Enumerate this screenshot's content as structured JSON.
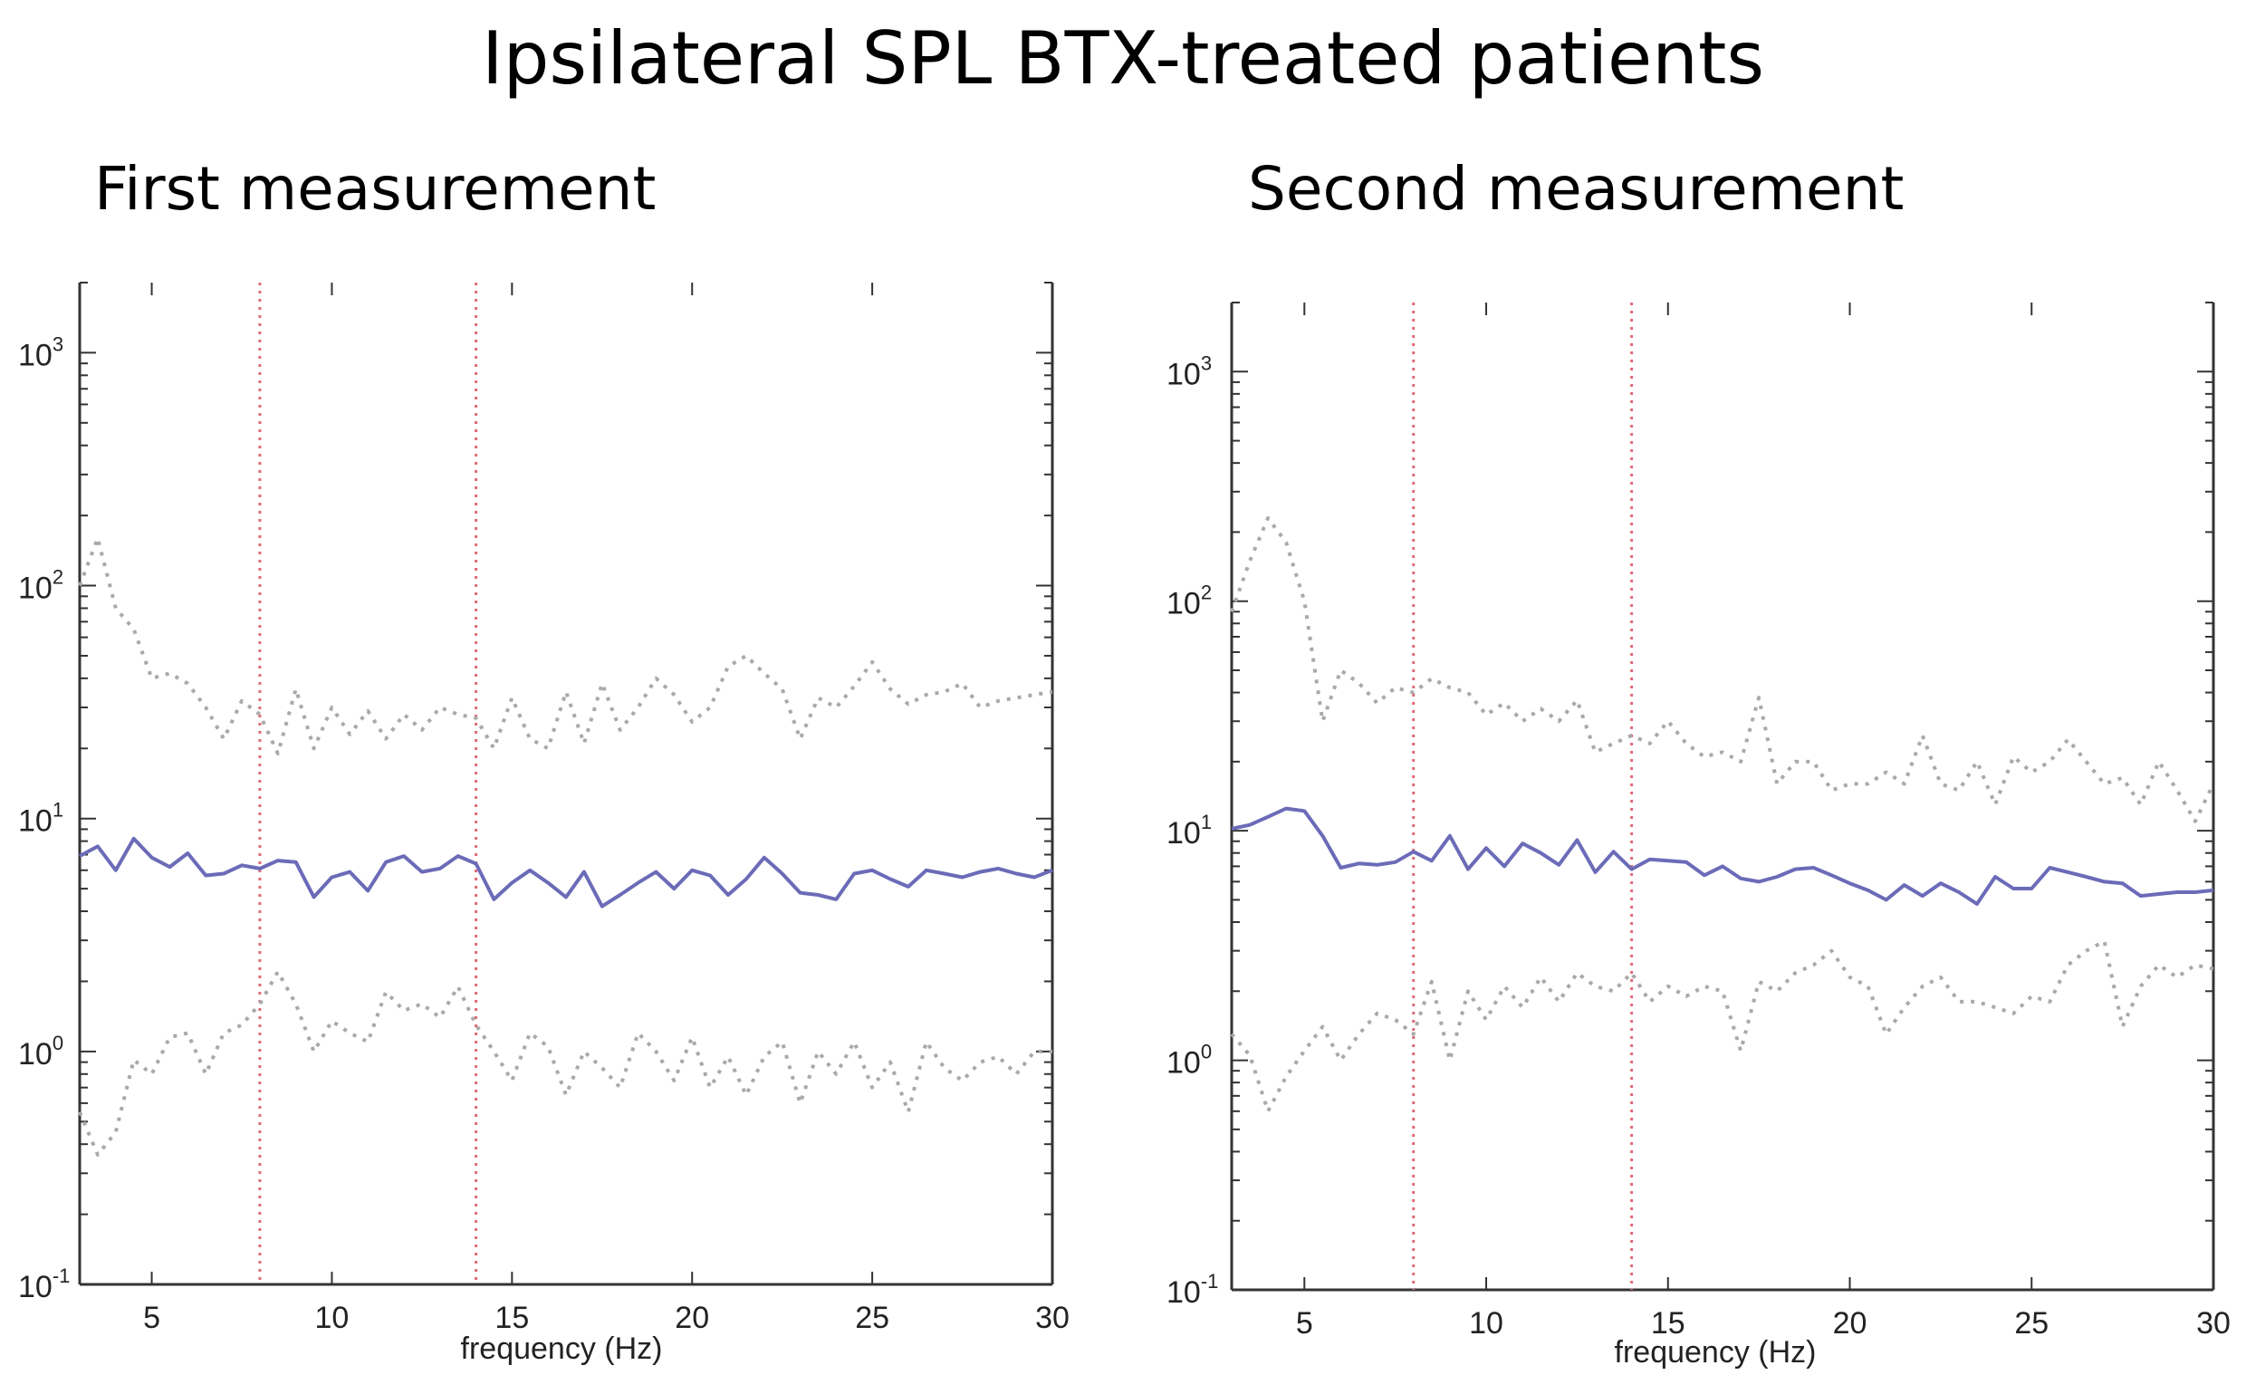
{
  "title": "Ipsilateral SPL BTX-treated patients",
  "colors": {
    "mean": "#6b6bb8",
    "bounds": "#a9a9ab",
    "markers": "#e06a78",
    "axis": "#333333"
  },
  "chart_data": [
    {
      "type": "line",
      "title": "First measurement",
      "xlabel": "frequency (Hz)",
      "ylabel": "",
      "yscale": "log",
      "xlim": [
        3,
        30
      ],
      "ylim": [
        0.1,
        2000
      ],
      "xticks": [
        5,
        10,
        15,
        20,
        25,
        30
      ],
      "yticks": [
        {
          "base": "10",
          "exp": "3",
          "value": 1000
        },
        {
          "base": "10",
          "exp": "2",
          "value": 100
        },
        {
          "base": "10",
          "exp": "1",
          "value": 10
        },
        {
          "base": "10",
          "exp": "0",
          "value": 1
        },
        {
          "base": "10",
          "exp": "-1",
          "value": 0.1
        }
      ],
      "vlines": [
        8,
        14
      ],
      "x": [
        3,
        3.5,
        4,
        4.5,
        5,
        5.5,
        6,
        6.5,
        7,
        7.5,
        8,
        8.5,
        9,
        9.5,
        10,
        10.5,
        11,
        11.5,
        12,
        12.5,
        13,
        13.5,
        14,
        14.5,
        15,
        15.5,
        16,
        16.5,
        17,
        17.5,
        18,
        18.5,
        19,
        19.5,
        20,
        20.5,
        21,
        21.5,
        22,
        22.5,
        23,
        23.5,
        24,
        24.5,
        25,
        25.5,
        26,
        26.5,
        27,
        27.5,
        28,
        28.5,
        29,
        29.5,
        30
      ],
      "series": [
        {
          "name": "mean",
          "style": "solid",
          "values": [
            6.9,
            7.6,
            6.0,
            8.2,
            6.8,
            6.2,
            7.1,
            5.7,
            5.8,
            6.3,
            6.1,
            6.6,
            6.5,
            4.6,
            5.6,
            5.9,
            4.9,
            6.5,
            6.9,
            5.9,
            6.1,
            6.9,
            6.4,
            4.5,
            5.3,
            6.0,
            5.3,
            4.6,
            5.9,
            4.2,
            4.7,
            5.3,
            5.9,
            5.0,
            6.0,
            5.7,
            4.7,
            5.5,
            6.8,
            5.8,
            4.8,
            4.7,
            4.5,
            5.8,
            6.0,
            5.5,
            5.1,
            6.0,
            5.8,
            5.6,
            5.9,
            6.1,
            5.8,
            5.6,
            6.0
          ]
        },
        {
          "name": "upper bound",
          "style": "dotted",
          "values": [
            100,
            160,
            80,
            65,
            40,
            42,
            38,
            30,
            22,
            32,
            28,
            19,
            36,
            20,
            30,
            23,
            29,
            22,
            28,
            24,
            30,
            28,
            27,
            20,
            33,
            22,
            20,
            35,
            21,
            38,
            24,
            30,
            40,
            34,
            26,
            30,
            45,
            50,
            42,
            36,
            22,
            33,
            30,
            37,
            47,
            36,
            31,
            34,
            35,
            38,
            30,
            32,
            33,
            34,
            35
          ]
        },
        {
          "name": "lower bound",
          "style": "dotted",
          "values": [
            0.55,
            0.36,
            0.45,
            0.92,
            0.8,
            1.15,
            1.2,
            0.8,
            1.2,
            1.3,
            1.6,
            2.2,
            1.6,
            1.0,
            1.35,
            1.2,
            1.1,
            1.8,
            1.5,
            1.6,
            1.4,
            1.9,
            1.3,
            1.0,
            0.75,
            1.2,
            1.05,
            0.65,
            1.0,
            0.85,
            0.7,
            1.2,
            1.0,
            0.75,
            1.15,
            0.7,
            0.95,
            0.65,
            0.95,
            1.1,
            0.6,
            1.0,
            0.8,
            1.1,
            0.7,
            0.9,
            0.55,
            1.1,
            0.85,
            0.75,
            0.9,
            0.95,
            0.8,
            1.0,
            1.0
          ]
        }
      ]
    },
    {
      "type": "line",
      "title": "Second measurement",
      "xlabel": "frequency (Hz)",
      "ylabel": "",
      "yscale": "log",
      "xlim": [
        3,
        30
      ],
      "ylim": [
        0.1,
        2000
      ],
      "xticks": [
        5,
        10,
        15,
        20,
        25,
        30
      ],
      "yticks": [
        {
          "base": "10",
          "exp": "3",
          "value": 1000
        },
        {
          "base": "10",
          "exp": "2",
          "value": 100
        },
        {
          "base": "10",
          "exp": "1",
          "value": 10
        },
        {
          "base": "10",
          "exp": "0",
          "value": 1
        },
        {
          "base": "10",
          "exp": "-1",
          "value": 0.1
        }
      ],
      "vlines": [
        8,
        14
      ],
      "x": [
        3,
        3.5,
        4,
        4.5,
        5,
        5.5,
        6,
        6.5,
        7,
        7.5,
        8,
        8.5,
        9,
        9.5,
        10,
        10.5,
        11,
        11.5,
        12,
        12.5,
        13,
        13.5,
        14,
        14.5,
        15,
        15.5,
        16,
        16.5,
        17,
        17.5,
        18,
        18.5,
        19,
        19.5,
        20,
        20.5,
        21,
        21.5,
        22,
        22.5,
        23,
        23.5,
        24,
        24.5,
        25,
        25.5,
        26,
        26.5,
        27,
        27.5,
        28,
        28.5,
        29,
        29.5,
        30
      ],
      "series": [
        {
          "name": "mean",
          "style": "solid",
          "values": [
            10.2,
            10.6,
            11.5,
            12.5,
            12.2,
            9.5,
            6.9,
            7.2,
            7.1,
            7.3,
            8.1,
            7.4,
            9.5,
            6.8,
            8.4,
            7.0,
            8.8,
            8.0,
            7.1,
            9.1,
            6.6,
            8.1,
            6.8,
            7.5,
            7.4,
            7.3,
            6.4,
            7.0,
            6.2,
            6.0,
            6.3,
            6.8,
            6.9,
            6.4,
            5.9,
            5.5,
            5.0,
            5.8,
            5.2,
            5.9,
            5.4,
            4.8,
            6.3,
            5.6,
            5.6,
            6.9,
            6.6,
            6.3,
            6.0,
            5.9,
            5.2,
            5.3,
            5.4,
            5.4,
            5.5
          ]
        },
        {
          "name": "upper bound",
          "style": "dotted",
          "values": [
            90,
            150,
            230,
            180,
            100,
            30,
            50,
            44,
            36,
            42,
            40,
            46,
            42,
            40,
            32,
            36,
            30,
            34,
            30,
            37,
            22,
            24,
            26,
            24,
            30,
            24,
            21,
            22,
            20,
            38,
            16,
            20,
            20,
            15,
            16,
            16,
            18,
            16,
            26,
            16,
            15,
            20,
            13,
            21,
            18,
            20,
            25,
            20,
            16,
            17,
            13,
            20,
            15,
            11,
            16
          ]
        },
        {
          "name": "lower bound",
          "style": "dotted",
          "values": [
            1.3,
            1.05,
            0.6,
            0.85,
            1.1,
            1.4,
            1.0,
            1.3,
            1.6,
            1.5,
            1.3,
            2.2,
            1.0,
            2.0,
            1.5,
            2.1,
            1.7,
            2.3,
            1.8,
            2.4,
            2.1,
            2.0,
            2.4,
            1.8,
            2.1,
            1.9,
            2.1,
            2.0,
            1.1,
            2.2,
            2.0,
            2.4,
            2.6,
            3.0,
            2.3,
            2.1,
            1.3,
            1.7,
            2.1,
            2.3,
            1.8,
            1.8,
            1.7,
            1.6,
            1.9,
            1.8,
            2.6,
            3.0,
            3.3,
            1.4,
            2.1,
            2.6,
            2.3,
            2.6,
            2.5
          ]
        }
      ]
    }
  ]
}
